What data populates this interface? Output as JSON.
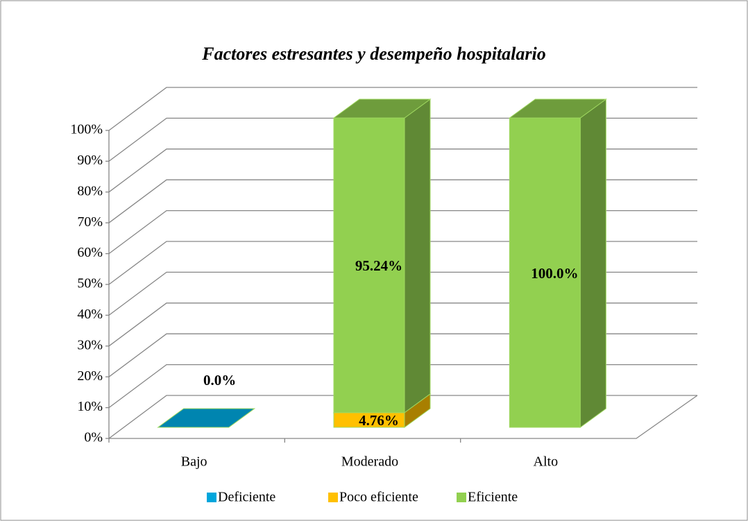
{
  "chart_data": {
    "type": "bar3d_stacked",
    "title": "Factores estresantes y desempeño hospitalario",
    "categories": [
      "Bajo",
      "Moderado",
      "Alto"
    ],
    "series": [
      {
        "name": "Deficiente",
        "color": "#00a6dc",
        "values": [
          0,
          null,
          null
        ],
        "value_labels": [
          "0.0%",
          null,
          null
        ]
      },
      {
        "name": "Poco eficiente",
        "color": "#ffc000",
        "values": [
          null,
          4.76,
          null
        ],
        "value_labels": [
          null,
          "4.76%",
          null
        ]
      },
      {
        "name": "Eficiente",
        "color": "#92d050",
        "values": [
          null,
          95.24,
          100
        ],
        "value_labels": [
          null,
          "95.24%",
          "100.0%"
        ]
      }
    ],
    "ylim": [
      0,
      100
    ],
    "yticks": [
      {
        "value": 0,
        "label": "0%"
      },
      {
        "value": 10,
        "label": "10%"
      },
      {
        "value": 20,
        "label": "20%"
      },
      {
        "value": 30,
        "label": "30%"
      },
      {
        "value": 40,
        "label": "40%"
      },
      {
        "value": 50,
        "label": "50%"
      },
      {
        "value": 60,
        "label": "60%"
      },
      {
        "value": 70,
        "label": "70%"
      },
      {
        "value": 80,
        "label": "80%"
      },
      {
        "value": 90,
        "label": "90%"
      },
      {
        "value": 100,
        "label": "100%"
      }
    ],
    "grid": true,
    "legend": "bottom"
  }
}
